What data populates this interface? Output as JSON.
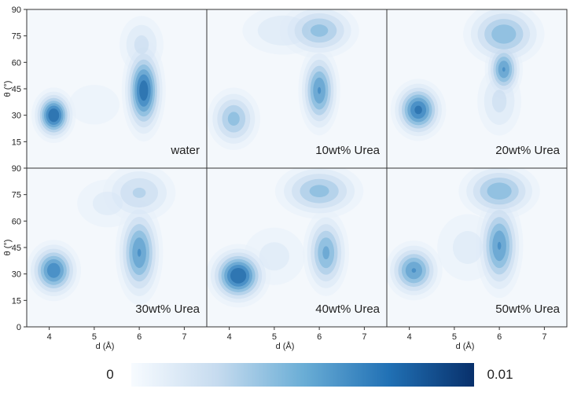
{
  "chart_data": {
    "type": "heatmap",
    "xlabel": "d (Å)",
    "ylabel": "θ (°)",
    "xlim": [
      3.5,
      7.5
    ],
    "ylim": [
      0,
      90
    ],
    "x_ticks": [
      "4",
      "5",
      "6",
      "7"
    ],
    "y_ticks": [
      "0",
      "15",
      "30",
      "45",
      "60",
      "75",
      "90"
    ],
    "layout": "2x3 grid, shared axes",
    "colormap": "Blues",
    "colorbar": {
      "min_label": "0",
      "max_label": "0.01",
      "min": 0,
      "max": 0.01
    },
    "panels": [
      {
        "label": "water",
        "peaks": [
          {
            "d": 4.1,
            "theta": 30,
            "sd_d": 0.22,
            "sd_theta": 7,
            "weight": 1.0
          },
          {
            "d": 6.1,
            "theta": 44,
            "sd_d": 0.22,
            "sd_theta": 13,
            "weight": 0.95
          },
          {
            "d": 6.05,
            "theta": 70,
            "sd_d": 0.3,
            "sd_theta": 10,
            "weight": 0.3
          },
          {
            "d": 5.0,
            "theta": 36,
            "sd_d": 0.5,
            "sd_theta": 10,
            "weight": 0.15
          }
        ]
      },
      {
        "label": "10wt% Urea",
        "peaks": [
          {
            "d": 4.1,
            "theta": 28,
            "sd_d": 0.3,
            "sd_theta": 9,
            "weight": 0.55
          },
          {
            "d": 6.0,
            "theta": 44,
            "sd_d": 0.22,
            "sd_theta": 12,
            "weight": 0.75
          },
          {
            "d": 6.0,
            "theta": 78,
            "sd_d": 0.45,
            "sd_theta": 8,
            "weight": 0.55
          },
          {
            "d": 5.2,
            "theta": 78,
            "sd_d": 0.6,
            "sd_theta": 9,
            "weight": 0.25
          }
        ]
      },
      {
        "label": "20wt% Urea",
        "peaks": [
          {
            "d": 4.2,
            "theta": 33,
            "sd_d": 0.28,
            "sd_theta": 8,
            "weight": 0.9
          },
          {
            "d": 6.1,
            "theta": 56,
            "sd_d": 0.2,
            "sd_theta": 8,
            "weight": 0.75
          },
          {
            "d": 6.1,
            "theta": 76,
            "sd_d": 0.45,
            "sd_theta": 9,
            "weight": 0.6
          },
          {
            "d": 6.0,
            "theta": 38,
            "sd_d": 0.3,
            "sd_theta": 12,
            "weight": 0.3
          }
        ]
      },
      {
        "label": "30wt% Urea",
        "peaks": [
          {
            "d": 4.1,
            "theta": 32,
            "sd_d": 0.28,
            "sd_theta": 8,
            "weight": 0.85
          },
          {
            "d": 6.0,
            "theta": 42,
            "sd_d": 0.25,
            "sd_theta": 14,
            "weight": 0.75
          },
          {
            "d": 6.0,
            "theta": 76,
            "sd_d": 0.45,
            "sd_theta": 9,
            "weight": 0.4
          },
          {
            "d": 5.3,
            "theta": 70,
            "sd_d": 0.5,
            "sd_theta": 10,
            "weight": 0.2
          }
        ]
      },
      {
        "label": "40wt% Urea",
        "peaks": [
          {
            "d": 4.2,
            "theta": 29,
            "sd_d": 0.32,
            "sd_theta": 8,
            "weight": 1.0
          },
          {
            "d": 6.15,
            "theta": 42,
            "sd_d": 0.25,
            "sd_theta": 12,
            "weight": 0.65
          },
          {
            "d": 6.0,
            "theta": 77,
            "sd_d": 0.5,
            "sd_theta": 8,
            "weight": 0.55
          },
          {
            "d": 5.0,
            "theta": 40,
            "sd_d": 0.5,
            "sd_theta": 12,
            "weight": 0.2
          }
        ]
      },
      {
        "label": "50wt% Urea",
        "peaks": [
          {
            "d": 4.1,
            "theta": 32,
            "sd_d": 0.3,
            "sd_theta": 8,
            "weight": 0.75
          },
          {
            "d": 6.0,
            "theta": 46,
            "sd_d": 0.25,
            "sd_theta": 14,
            "weight": 0.75
          },
          {
            "d": 6.0,
            "theta": 77,
            "sd_d": 0.45,
            "sd_theta": 8,
            "weight": 0.6
          },
          {
            "d": 5.3,
            "theta": 45,
            "sd_d": 0.5,
            "sd_theta": 14,
            "weight": 0.2
          }
        ]
      }
    ]
  }
}
